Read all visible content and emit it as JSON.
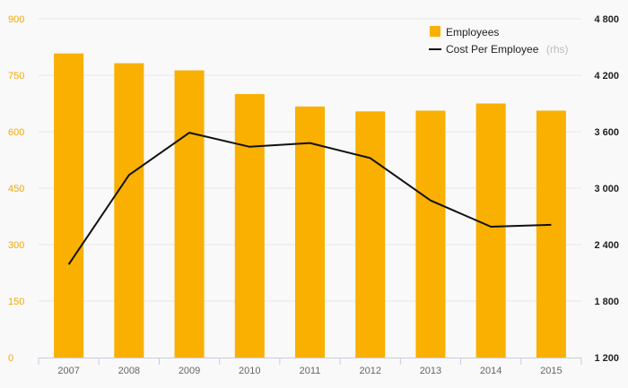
{
  "chart_data": {
    "type": "bar",
    "categories": [
      "2007",
      "2008",
      "2009",
      "2010",
      "2011",
      "2012",
      "2013",
      "2014",
      "2015"
    ],
    "series": [
      {
        "name": "Employees",
        "type": "bar",
        "axis": "left",
        "color": "#f9b000",
        "values": [
          808,
          782,
          763,
          700,
          667,
          654,
          656,
          675,
          656
        ]
      },
      {
        "name": "Cost Per Employee",
        "name_suffix": "(rhs)",
        "type": "line",
        "axis": "right",
        "color": "#111111",
        "values": [
          2190,
          3140,
          3590,
          3440,
          3480,
          3320,
          2870,
          2590,
          2610
        ]
      }
    ],
    "y_left": {
      "ticks": [
        "0",
        "150",
        "300",
        "450",
        "600",
        "750",
        "900"
      ],
      "lim": [
        0,
        900
      ],
      "color": "#f5a800"
    },
    "y_right": {
      "ticks": [
        "1 200",
        "1 800",
        "2 400",
        "3 000",
        "3 600",
        "4 200",
        "4 800"
      ],
      "lim": [
        1200,
        4800
      ]
    },
    "grid": true,
    "legend_position": "top-right",
    "title": "",
    "xlabel": "",
    "ylabel": ""
  }
}
